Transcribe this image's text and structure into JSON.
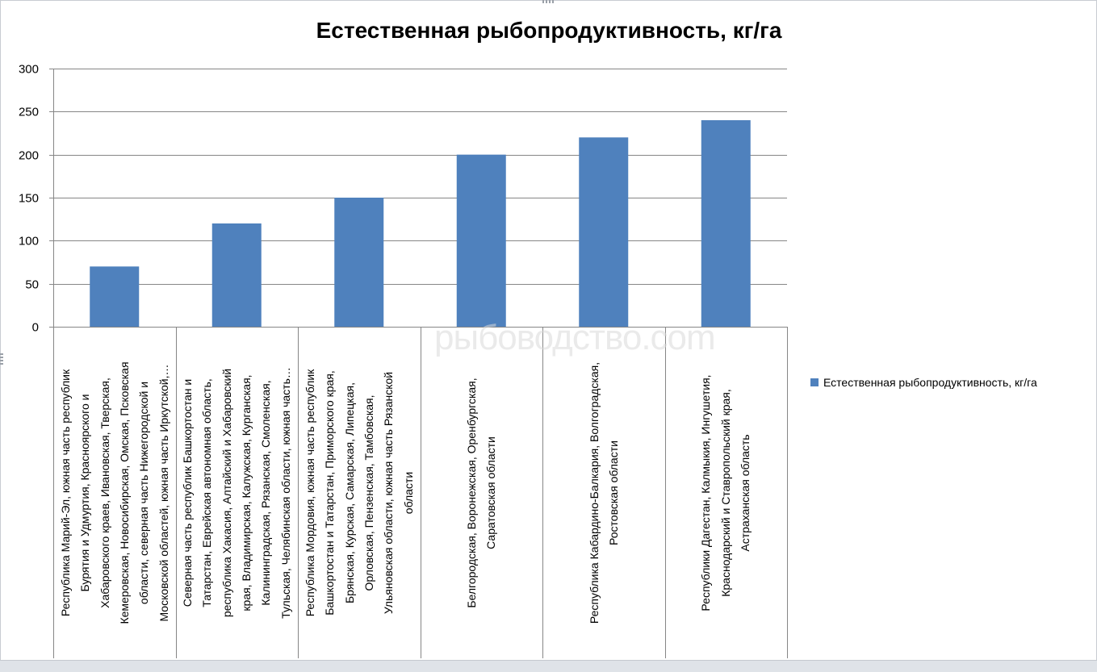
{
  "chart_data": {
    "type": "bar",
    "title": "Естественная рыбопродуктивность, кг/га",
    "categories": [
      "Республика Марий-Эл, южная часть республик Бурятия и Удмуртия, Красноярского и Хабаровского краев, Ивановская, Тверская, Кемеровская, Новосибирская, Омская, Псковская области, северная часть Нижегородской и Московской областей, южная часть Иркутской,…",
      "Северная часть республик Башкортостан и Татарстан, Еврейская автономная область, республика Хакасия, Алтайский и Хабаровский края, Владимирская, Калужская, Курганская, Калининградская, Рязанская, Смоленская, Тульская, Челябинская области, южная часть…",
      "Республика Мордовия, южная часть республик Башкортостан и Татарстан, Приморского края, Брянская, Курская, Самарская, Липецкая, Орловская, Пензенская, Тамбовская, Ульяновская области, южная часть Рязанской области",
      "Белгородская, Воронежская, Оренбургская, Саратовская области",
      "Республика Кабардино-Балкария, Волгоградская, Ростовская области",
      "Республики Дагестан, Калмыкия, Ингушетия, Краснодарский и Ставропольский края, Астраханская область"
    ],
    "category_lines": [
      [
        "Республика Марий-Эл, южная часть республик",
        "Бурятия и Удмуртия, Красноярского и",
        "Хабаровского краев, Ивановская, Тверская,",
        "Кемеровская, Новосибирская, Омская, Псковская",
        "области, северная часть Нижегородской и",
        "Московской областей, южная часть Иркутской,…"
      ],
      [
        "Северная часть республик Башкортостан и",
        "Татарстан, Еврейская автономная область,",
        "республика Хакасия, Алтайский и Хабаровский",
        "края, Владимирская, Калужская, Курганская,",
        "Калининградская, Рязанская, Смоленская,",
        "Тульская, Челябинская области, южная часть…"
      ],
      [
        "Республика Мордовия, южная часть республик",
        "Башкортостан и Татарстан, Приморского края,",
        "Брянская, Курская, Самарская, Липецкая,",
        "Орловская, Пензенская, Тамбовская,",
        "Ульяновская области, южная часть Рязанской",
        "области"
      ],
      [
        "Белгородская, Воронежская, Оренбургская,",
        "Саратовская области"
      ],
      [
        "Республика Кабардино-Балкария, Волгоградская,",
        "Ростовская области"
      ],
      [
        "Республики Дагестан, Калмыкия, Ингушетия,",
        "Краснодарский и Ставропольский края,",
        "Астраханская область"
      ]
    ],
    "series": [
      {
        "name": "Естественная рыбопродуктивность, кг/га",
        "values": [
          70,
          120,
          150,
          200,
          220,
          240
        ]
      }
    ],
    "ylim": [
      0,
      300
    ],
    "yticks": [
      0,
      50,
      100,
      150,
      200,
      250,
      300
    ],
    "grid": true,
    "legend": "right",
    "bar_color": "#4f81bd"
  },
  "watermark": "рыбоводство.com"
}
